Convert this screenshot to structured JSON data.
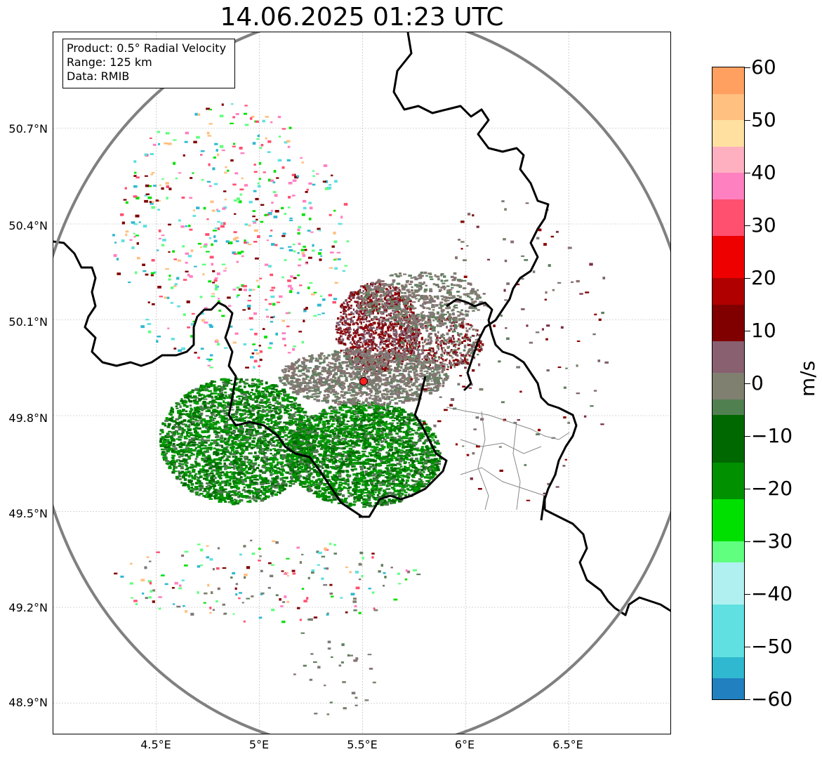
{
  "title": "14.06.2025 01:23 UTC",
  "info": {
    "product": "Product: 0.5° Radial Velocity",
    "range": "Range: 125 km",
    "source": "Data: RMIB"
  },
  "axes": {
    "y_ticks": [
      "50.7°N",
      "50.4°N",
      "50.1°N",
      "49.8°N",
      "49.5°N",
      "49.2°N",
      "48.9°N"
    ],
    "x_ticks": [
      "4.5°E",
      "5°E",
      "5.5°E",
      "6°E",
      "6.5°E"
    ]
  },
  "colorbar": {
    "unit": "m/s",
    "min": -60,
    "max": 60,
    "ticks": [
      "60",
      "50",
      "40",
      "30",
      "20",
      "10",
      "0",
      "−10",
      "−20",
      "−30",
      "−40",
      "−50",
      "−60"
    ],
    "stops": [
      {
        "from": 60,
        "to": 55,
        "color": "#ffa060"
      },
      {
        "from": 55,
        "to": 50,
        "color": "#ffc080"
      },
      {
        "from": 50,
        "to": 45,
        "color": "#ffe0a0"
      },
      {
        "from": 45,
        "to": 40,
        "color": "#ffb0c0"
      },
      {
        "from": 40,
        "to": 35,
        "color": "#ff80c0"
      },
      {
        "from": 35,
        "to": 28,
        "color": "#ff5070"
      },
      {
        "from": 28,
        "to": 20,
        "color": "#ee0000"
      },
      {
        "from": 20,
        "to": 15,
        "color": "#b00000"
      },
      {
        "from": 15,
        "to": 8,
        "color": "#800000"
      },
      {
        "from": 8,
        "to": 2,
        "color": "#886070"
      },
      {
        "from": 2,
        "to": -3,
        "color": "#808070"
      },
      {
        "from": -3,
        "to": -6,
        "color": "#508050"
      },
      {
        "from": -6,
        "to": -15,
        "color": "#006800"
      },
      {
        "from": -15,
        "to": -22,
        "color": "#009000"
      },
      {
        "from": -22,
        "to": -30,
        "color": "#00e000"
      },
      {
        "from": -30,
        "to": -34,
        "color": "#60ff80"
      },
      {
        "from": -34,
        "to": -42,
        "color": "#b0f0f0"
      },
      {
        "from": -42,
        "to": -52,
        "color": "#60e0e0"
      },
      {
        "from": -52,
        "to": -56,
        "color": "#30b8d0"
      },
      {
        "from": -56,
        "to": -60,
        "color": "#2080c0"
      }
    ]
  },
  "radar": {
    "site_lon": 5.5,
    "site_lat": 49.914,
    "range_km": 125,
    "site_color": "#ff2020"
  },
  "map_extent": {
    "lon_min": 4.0,
    "lon_max": 7.0,
    "lat_min": 48.8,
    "lat_max": 51.0
  },
  "colors": {
    "approaching": "#008000",
    "receding": "#800000",
    "near_zero": "#808070",
    "border": "#000000",
    "subregion": "#888888",
    "range_ring": "#808080"
  }
}
